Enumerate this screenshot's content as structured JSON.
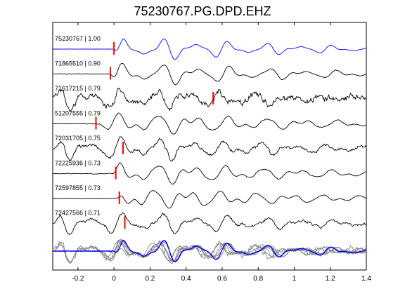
{
  "chart_data": {
    "type": "line",
    "title": "75230767.PG.DPD.EHZ",
    "xlabel": "",
    "ylabel": "",
    "xlim": [
      -0.34,
      1.4
    ],
    "xticks": [
      -0.2,
      0,
      0.2,
      0.4,
      0.6,
      0.8,
      1,
      1.2,
      1.4
    ],
    "xtick_labels": [
      "-0.2",
      "0",
      "0.2",
      "0.4",
      "0.6",
      "0.8",
      "1",
      "1.2",
      "1.4"
    ],
    "grid": false,
    "pick_color": "#ff0000",
    "template_color": "#0000ff",
    "trace_color": "#000000",
    "stack_color": "#808080",
    "traces": [
      {
        "label": "75230767 | 1.00",
        "pick_time": 0.0,
        "onset": 0.0,
        "noise": 0.02,
        "seed": 11,
        "phase": 0.0,
        "freq": 1.0,
        "color": "#0000ff"
      },
      {
        "label": "71865510 | 0.90",
        "pick_time": -0.02,
        "onset": -0.02,
        "noise": 0.05,
        "seed": 23,
        "phase": 0.3,
        "freq": 0.97,
        "color": "#000000"
      },
      {
        "label": "71617215 | 0.79",
        "pick_time": 0.55,
        "onset": -0.34,
        "noise": 0.45,
        "seed": 37,
        "phase": 0.7,
        "freq": 1.05,
        "color": "#000000"
      },
      {
        "label": "51207555 | 0.79",
        "pick_time": -0.1,
        "onset": -0.08,
        "noise": 0.06,
        "seed": 41,
        "phase": 1.1,
        "freq": 0.95,
        "color": "#000000"
      },
      {
        "label": "72031705 | 0.75",
        "pick_time": 0.05,
        "onset": -0.34,
        "noise": 0.25,
        "seed": 53,
        "phase": 0.5,
        "freq": 1.02,
        "color": "#000000"
      },
      {
        "label": "72225936 | 0.73",
        "pick_time": 0.01,
        "onset": -0.02,
        "noise": 0.05,
        "seed": 67,
        "phase": 0.9,
        "freq": 0.98,
        "color": "#000000"
      },
      {
        "label": "72597855 | 0.73",
        "pick_time": 0.03,
        "onset": 0.02,
        "noise": 0.04,
        "seed": 79,
        "phase": 1.4,
        "freq": 1.01,
        "color": "#000000"
      },
      {
        "label": "72427566 | 0.71",
        "pick_time": 0.06,
        "onset": -0.34,
        "noise": 0.2,
        "seed": 83,
        "phase": 0.2,
        "freq": 0.99,
        "color": "#000000"
      }
    ]
  }
}
